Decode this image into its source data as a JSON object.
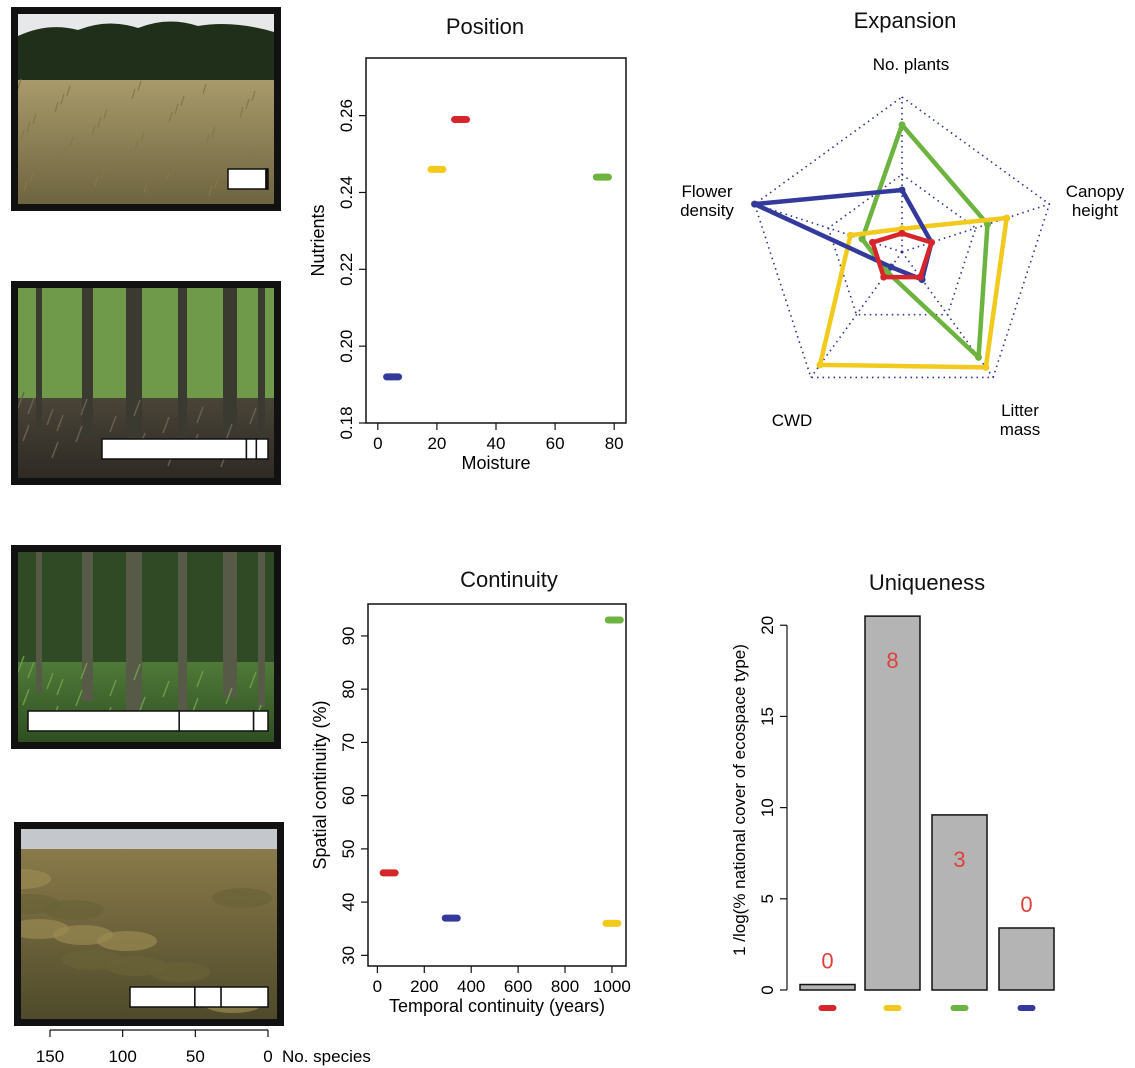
{
  "colors": {
    "red": "#d7262b",
    "yellow": "#f2c91d",
    "green": "#6db33f",
    "blue": "#343a9c",
    "gray": "#b4b4b4",
    "dotted": "#2b2f8f",
    "count_text": "#e0403a"
  },
  "photos": [
    {
      "name": "photo-agricultural-field",
      "color": "red",
      "scene": "wheat-field",
      "segments": [
        0.95,
        0.03,
        0.02
      ]
    },
    {
      "name": "photo-forest",
      "color": "yellow",
      "scene": "forest",
      "segments": [
        0.87,
        0.06,
        0.07
      ]
    },
    {
      "name": "photo-woodland-understory",
      "color": "green",
      "scene": "understory",
      "segments": [
        0.63,
        0.31,
        0.06
      ]
    },
    {
      "name": "photo-heathland",
      "color": "blue",
      "scene": "heath",
      "segments": [
        0.47,
        0.19,
        0.34
      ]
    }
  ],
  "species_axis": {
    "ticks": [
      "150",
      "100",
      "50",
      "0"
    ],
    "label": "No. species"
  },
  "position": {
    "title": "Position",
    "chart_data": {
      "type": "scatter",
      "xlabel": "Moisture",
      "ylabel": "Nutrients",
      "xlim": [
        -4,
        84
      ],
      "ylim": [
        0.18,
        0.275
      ],
      "xticks": [
        "0",
        "20",
        "40",
        "60",
        "80"
      ],
      "yticks": [
        "0.18",
        "0.20",
        "0.22",
        "0.24",
        "0.26"
      ],
      "points": [
        {
          "color": "red",
          "x": 28,
          "y": 0.259
        },
        {
          "color": "yellow",
          "x": 20,
          "y": 0.246
        },
        {
          "color": "green",
          "x": 76,
          "y": 0.244
        },
        {
          "color": "blue",
          "x": 5,
          "y": 0.192
        }
      ]
    }
  },
  "expansion": {
    "title": "Expansion",
    "chart_data": {
      "type": "radar",
      "axes": [
        "No. plants",
        "Canopy height",
        "Litter mass",
        "CWD",
        "Flower density"
      ],
      "axis_labels": [
        [
          "No. plants"
        ],
        [
          "Canopy",
          "height"
        ],
        [
          "Litter",
          "mass"
        ],
        [
          "CWD"
        ],
        [
          "Flower",
          "density"
        ]
      ],
      "series": [
        {
          "color": "green",
          "values": [
            0.82,
            0.58,
            0.84,
            0.16,
            0.27
          ]
        },
        {
          "color": "yellow",
          "values": [
            0.15,
            0.71,
            0.92,
            0.9,
            0.35
          ]
        },
        {
          "color": "blue",
          "values": [
            0.4,
            0.2,
            0.22,
            0.12,
            1.0
          ]
        },
        {
          "color": "red",
          "values": [
            0.12,
            0.2,
            0.2,
            0.2,
            0.2
          ]
        }
      ]
    }
  },
  "continuity": {
    "title": "Continuity",
    "chart_data": {
      "type": "scatter",
      "xlabel": "Temporal continuity (years)",
      "ylabel": "Spatial continuity (%)",
      "xlim": [
        -40,
        1060
      ],
      "ylim": [
        28,
        96
      ],
      "xticks": [
        "0",
        "200",
        "400",
        "600",
        "800",
        "1000"
      ],
      "yticks": [
        "30",
        "40",
        "50",
        "60",
        "70",
        "80",
        "90"
      ],
      "points": [
        {
          "color": "red",
          "x": 50,
          "y": 45.5
        },
        {
          "color": "blue",
          "x": 315,
          "y": 37
        },
        {
          "color": "yellow",
          "x": 1000,
          "y": 36
        },
        {
          "color": "green",
          "x": 1010,
          "y": 93
        }
      ]
    }
  },
  "uniqueness": {
    "title": "Uniqueness",
    "chart_data": {
      "type": "bar",
      "ylabel": "1 /log(% national cover of ecospace type)",
      "ylim": [
        0,
        21
      ],
      "yticks": [
        "0",
        "5",
        "10",
        "15",
        "20"
      ],
      "bars": [
        {
          "color": "red",
          "value": 0.3,
          "label": "0"
        },
        {
          "color": "yellow",
          "value": 20.5,
          "label": "8"
        },
        {
          "color": "green",
          "value": 9.6,
          "label": "3"
        },
        {
          "color": "blue",
          "value": 3.4,
          "label": "0"
        }
      ]
    }
  }
}
